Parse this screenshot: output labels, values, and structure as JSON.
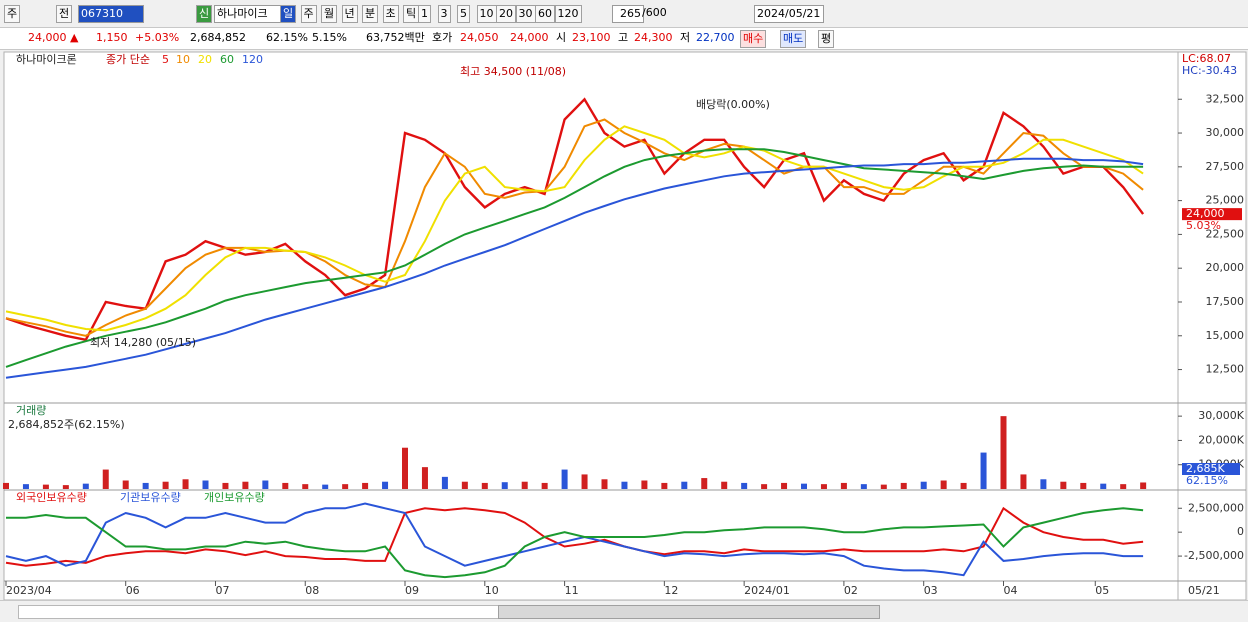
{
  "toolbar": {
    "period": "주",
    "prev": "전",
    "code": "067310",
    "new": "신",
    "name": "하나마이크",
    "intervals": [
      "일",
      "주",
      "월",
      "년",
      "분",
      "초",
      "틱"
    ],
    "counts": [
      "1",
      "3",
      "5",
      "10",
      "20",
      "30",
      "60",
      "120"
    ],
    "shown": "265",
    "total": "/600",
    "date": "2024/05/21"
  },
  "quote": {
    "price": "24,000 ▲",
    "change": "1,150",
    "rate": "+5.03%",
    "volume": "2,684,852",
    "vol_ratio": "62.15%",
    "turnover": "5.15%",
    "amount": "63,752백만",
    "ask_label": "호가",
    "ask": "24,050",
    "bid": "24,000",
    "open_label": "시",
    "open": "23,100",
    "high_label": "고",
    "high": "24,300",
    "low_label": "저",
    "low": "22,700",
    "buy": "매수",
    "sell": "매도",
    "avg": "평"
  },
  "chart_data": [
    {
      "type": "line",
      "title": "하나마이크론",
      "subtitle": "종가 단순",
      "lc": "LC:68.07",
      "hc": "HC:-30.43",
      "last_label": "24,000",
      "last_rate": "5.03%",
      "annotations": [
        "최고 34,500 (11/08)",
        "최저 14,280 (05/15)",
        "배당락(0.00%)"
      ],
      "series": [
        {
          "name": "5",
          "color": "#e01010",
          "values": [
            16300,
            15800,
            15400,
            15000,
            14700,
            17500,
            17200,
            17000,
            20500,
            21000,
            22000,
            21500,
            21000,
            21200,
            21800,
            20500,
            19500,
            18000,
            18500,
            19500,
            30000,
            29500,
            28500,
            26000,
            24500,
            25500,
            26000,
            25500,
            31000,
            32500,
            30000,
            29000,
            29500,
            27000,
            28500,
            29500,
            29500,
            27500,
            26000,
            28000,
            28500,
            25000,
            26500,
            25500,
            25000,
            27000,
            28000,
            28500,
            26500,
            27500,
            31500,
            30500,
            29000,
            27000,
            27500,
            27500,
            26000,
            24000
          ]
        },
        {
          "name": "10",
          "color": "#f08a00",
          "values": [
            16300,
            16000,
            15700,
            15300,
            15000,
            15800,
            16500,
            17000,
            18500,
            20000,
            21000,
            21500,
            21500,
            21200,
            21300,
            21200,
            20500,
            19500,
            18800,
            18600,
            22000,
            26000,
            28500,
            27500,
            25500,
            25200,
            25600,
            25700,
            27500,
            30500,
            31000,
            30000,
            29300,
            28500,
            28000,
            28700,
            29200,
            29000,
            28000,
            27000,
            27500,
            27500,
            26000,
            26000,
            25500,
            25500,
            26500,
            27500,
            27500,
            27000,
            28500,
            30000,
            29800,
            28500,
            27500,
            27500,
            27000,
            25800
          ]
        },
        {
          "name": "20",
          "color": "#f0e000",
          "values": [
            16800,
            16500,
            16200,
            15800,
            15500,
            15400,
            15800,
            16300,
            17000,
            18000,
            19500,
            20800,
            21500,
            21500,
            21300,
            21200,
            20800,
            20200,
            19500,
            19000,
            19500,
            22000,
            25000,
            27000,
            27500,
            26000,
            25800,
            25700,
            26000,
            28000,
            29500,
            30500,
            30000,
            29500,
            28500,
            28200,
            28500,
            29000,
            28700,
            28000,
            27500,
            27500,
            27000,
            26500,
            26000,
            25800,
            26000,
            26800,
            27500,
            27500,
            27800,
            28500,
            29500,
            29500,
            29000,
            28500,
            28000,
            27000
          ]
        },
        {
          "name": "60",
          "color": "#1c9a30",
          "values": [
            12700,
            13200,
            13700,
            14200,
            14600,
            15000,
            15300,
            15600,
            16000,
            16500,
            17000,
            17600,
            18000,
            18300,
            18600,
            18900,
            19100,
            19300,
            19500,
            19700,
            20200,
            21000,
            21800,
            22500,
            23000,
            23500,
            24000,
            24500,
            25200,
            26000,
            26800,
            27500,
            28000,
            28300,
            28500,
            28700,
            28800,
            28800,
            28800,
            28600,
            28300,
            28000,
            27700,
            27400,
            27300,
            27200,
            27100,
            27000,
            26800,
            26600,
            26900,
            27200,
            27400,
            27500,
            27600,
            27500,
            27500,
            27500
          ]
        },
        {
          "name": "120",
          "color": "#2a55d8",
          "values": [
            11900,
            12100,
            12300,
            12500,
            12700,
            13000,
            13300,
            13600,
            14000,
            14400,
            14800,
            15200,
            15700,
            16200,
            16600,
            17000,
            17400,
            17800,
            18200,
            18600,
            19100,
            19600,
            20200,
            20700,
            21200,
            21700,
            22300,
            22900,
            23500,
            24100,
            24600,
            25100,
            25500,
            25900,
            26200,
            26500,
            26800,
            27000,
            27100,
            27200,
            27300,
            27400,
            27500,
            27600,
            27600,
            27700,
            27700,
            27800,
            27800,
            27900,
            28000,
            28100,
            28100,
            28100,
            28000,
            28000,
            27900,
            27700
          ]
        }
      ],
      "ylim": [
        10100,
        35700
      ],
      "yticks": [
        {
          "value": 12500,
          "label": "12,500"
        },
        {
          "value": 15000,
          "label": "15,000"
        },
        {
          "value": 17500,
          "label": "17,500"
        },
        {
          "value": 20000,
          "label": "20,000"
        },
        {
          "value": 22500,
          "label": "22,500"
        },
        {
          "value": 25000,
          "label": "25,000"
        },
        {
          "value": 27500,
          "label": "27,500"
        },
        {
          "value": 30000,
          "label": "30,000"
        },
        {
          "value": 32500,
          "label": "32,500"
        }
      ],
      "xticks": [
        {
          "value": 0,
          "label": "2023/04"
        },
        {
          "value": 6,
          "label": "06"
        },
        {
          "value": 10.5,
          "label": "07"
        },
        {
          "value": 15,
          "label": "08"
        },
        {
          "value": 20,
          "label": "09"
        },
        {
          "value": 24,
          "label": "10"
        },
        {
          "value": 28,
          "label": "11"
        },
        {
          "value": 33,
          "label": "12"
        },
        {
          "value": 37,
          "label": "2024/01"
        },
        {
          "value": 42,
          "label": "02"
        },
        {
          "value": 46,
          "label": "03"
        },
        {
          "value": 50,
          "label": "04"
        },
        {
          "value": 54.6,
          "label": "05"
        }
      ],
      "x_last_label": "05/21"
    },
    {
      "type": "bar",
      "title": "거래량",
      "subtitle": "2,684,852주(62.15%)",
      "color": "#d02020",
      "last_label": "2,685K",
      "last_rate": "62.15%",
      "values": [
        2500,
        2000,
        1800,
        1600,
        2200,
        8000,
        3500,
        2500,
        3000,
        4000,
        3500,
        2500,
        3000,
        3500,
        2500,
        2000,
        1800,
        2000,
        2500,
        3000,
        17000,
        9000,
        5000,
        3000,
        2500,
        2800,
        3000,
        2500,
        8000,
        6000,
        4000,
        3000,
        3500,
        2500,
        3000,
        4500,
        3000,
        2500,
        2000,
        2500,
        2200,
        2000,
        2500,
        2000,
        1800,
        2500,
        3000,
        3500,
        2500,
        15000,
        30000,
        6000,
        4000,
        3000,
        2500,
        2200,
        2000,
        2685
      ],
      "ylim": [
        0,
        35000
      ],
      "yticks": [
        {
          "value": 10000,
          "label": "10,000K"
        },
        {
          "value": 20000,
          "label": "20,000K"
        },
        {
          "value": 30000,
          "label": "30,000K"
        }
      ]
    },
    {
      "type": "line",
      "series": [
        {
          "name": "외국인보유수량",
          "color": "#e01010",
          "values": [
            -3200000,
            -3500000,
            -3300000,
            -3000000,
            -3200000,
            -2500000,
            -2200000,
            -2000000,
            -2000000,
            -2200000,
            -1800000,
            -2000000,
            -2400000,
            -2000000,
            -2500000,
            -2600000,
            -2800000,
            -2800000,
            -3000000,
            -3000000,
            2000000,
            2500000,
            2300000,
            2500000,
            2300000,
            2000000,
            1000000,
            -500000,
            -1500000,
            -1200000,
            -800000,
            -1500000,
            -2000000,
            -2300000,
            -2000000,
            -2000000,
            -2200000,
            -1800000,
            -2000000,
            -2000000,
            -2000000,
            -2000000,
            -1800000,
            -2000000,
            -2000000,
            -2000000,
            -2000000,
            -1800000,
            -2000000,
            -1500000,
            2500000,
            1000000,
            0,
            -500000,
            -800000,
            -800000,
            -1200000,
            -1000000
          ]
        },
        {
          "name": "기관보유수량",
          "color": "#2a55d8",
          "values": [
            -2500000,
            -3000000,
            -2500000,
            -3500000,
            -3000000,
            1000000,
            2000000,
            1500000,
            500000,
            1500000,
            1500000,
            2000000,
            1500000,
            1000000,
            1000000,
            2000000,
            2500000,
            2500000,
            3000000,
            2500000,
            2000000,
            -1500000,
            -2500000,
            -3500000,
            -3000000,
            -2500000,
            -2000000,
            -1500000,
            -1000000,
            -500000,
            -1000000,
            -1500000,
            -2000000,
            -2500000,
            -2200000,
            -2300000,
            -2500000,
            -2300000,
            -2200000,
            -2200000,
            -2300000,
            -2200000,
            -2500000,
            -3500000,
            -3800000,
            -4000000,
            -4000000,
            -4200000,
            -4500000,
            -1000000,
            -3000000,
            -2800000,
            -2500000,
            -2300000,
            -2200000,
            -2200000,
            -2500000,
            -2500000
          ]
        },
        {
          "name": "개인보유수량",
          "color": "#1c9a30",
          "values": [
            1500000,
            1500000,
            1800000,
            1500000,
            1500000,
            0,
            -1500000,
            -1500000,
            -1800000,
            -1800000,
            -1500000,
            -1500000,
            -1000000,
            -1200000,
            -1000000,
            -1500000,
            -1800000,
            -2000000,
            -2000000,
            -1500000,
            -4000000,
            -4500000,
            -4700000,
            -4500000,
            -4200000,
            -3500000,
            -1500000,
            -500000,
            0,
            -500000,
            -500000,
            -500000,
            -500000,
            -300000,
            0,
            0,
            200000,
            300000,
            500000,
            500000,
            500000,
            300000,
            0,
            0,
            300000,
            500000,
            500000,
            600000,
            700000,
            800000,
            -1500000,
            500000,
            1000000,
            1500000,
            2000000,
            2300000,
            2500000,
            2300000
          ]
        }
      ],
      "ylim": [
        -5000000,
        4200000
      ],
      "yticks": [
        {
          "value": -2500000,
          "label": "-2,500,000"
        },
        0,
        {
          "value": 2500000,
          "label": "2,500,000"
        }
      ]
    }
  ]
}
